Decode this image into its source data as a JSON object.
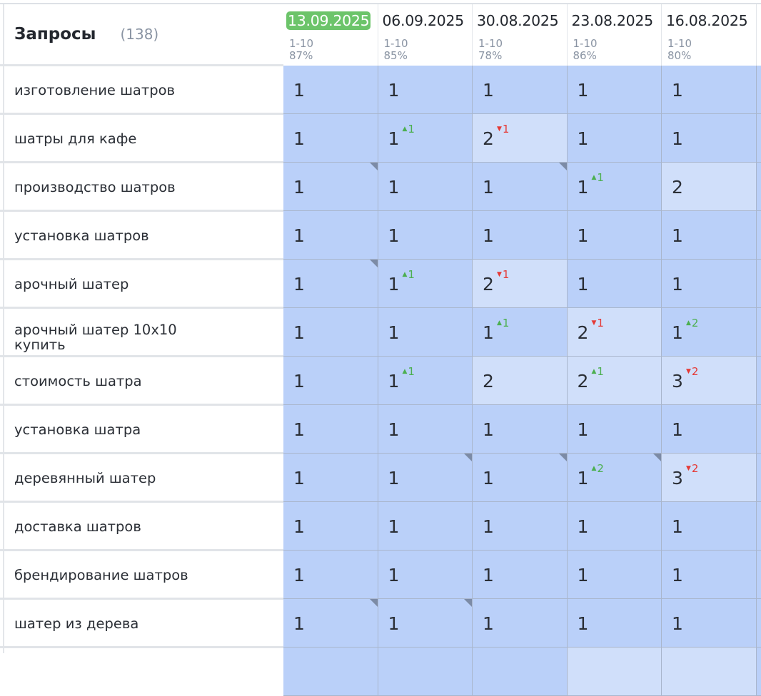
{
  "header": {
    "title": "Запросы",
    "count": "(138)"
  },
  "columns": [
    {
      "date": "13.09.2025",
      "range": "1-10",
      "percent": "87%",
      "current": true
    },
    {
      "date": "06.09.2025",
      "range": "1-10",
      "percent": "85%"
    },
    {
      "date": "30.08.2025",
      "range": "1-10",
      "percent": "78%"
    },
    {
      "date": "23.08.2025",
      "range": "1-10",
      "percent": "86%"
    },
    {
      "date": "16.08.2025",
      "range": "1-10",
      "percent": "80%"
    }
  ],
  "colors": {
    "cell": "#bad0f9",
    "cell_light": "#d0dffa",
    "current_date": "#6cc46a",
    "up": "#4caf50",
    "down": "#e53935"
  },
  "rows": [
    {
      "query": "изготовление шатров",
      "cells": [
        {
          "v": "1"
        },
        {
          "v": "1"
        },
        {
          "v": "1"
        },
        {
          "v": "1"
        },
        {
          "v": "1"
        }
      ]
    },
    {
      "query": "шатры для кафе",
      "cells": [
        {
          "v": "1"
        },
        {
          "v": "1",
          "up": "1"
        },
        {
          "v": "2",
          "down": "1"
        },
        {
          "v": "1"
        },
        {
          "v": "1"
        }
      ]
    },
    {
      "query": "производство шатров",
      "cells": [
        {
          "v": "1",
          "mark": true
        },
        {
          "v": "1"
        },
        {
          "v": "1",
          "mark": true
        },
        {
          "v": "1",
          "up": "1"
        },
        {
          "v": "2"
        }
      ]
    },
    {
      "query": "установка шатров",
      "cells": [
        {
          "v": "1"
        },
        {
          "v": "1"
        },
        {
          "v": "1"
        },
        {
          "v": "1"
        },
        {
          "v": "1"
        }
      ]
    },
    {
      "query": "арочный шатер",
      "cells": [
        {
          "v": "1",
          "mark": true
        },
        {
          "v": "1",
          "up": "1"
        },
        {
          "v": "2",
          "down": "1"
        },
        {
          "v": "1"
        },
        {
          "v": "1"
        }
      ]
    },
    {
      "query": "арочный шатер 10x10 купить",
      "cells": [
        {
          "v": "1"
        },
        {
          "v": "1"
        },
        {
          "v": "1",
          "up": "1"
        },
        {
          "v": "2",
          "down": "1"
        },
        {
          "v": "1",
          "up": "2"
        }
      ]
    },
    {
      "query": "стоимость шатра",
      "cells": [
        {
          "v": "1"
        },
        {
          "v": "1",
          "up": "1"
        },
        {
          "v": "2"
        },
        {
          "v": "2",
          "up": "1"
        },
        {
          "v": "3",
          "down": "2"
        }
      ]
    },
    {
      "query": "установка шатра",
      "cells": [
        {
          "v": "1"
        },
        {
          "v": "1"
        },
        {
          "v": "1"
        },
        {
          "v": "1"
        },
        {
          "v": "1"
        }
      ]
    },
    {
      "query": "деревянный шатер",
      "cells": [
        {
          "v": "1"
        },
        {
          "v": "1",
          "mark": true
        },
        {
          "v": "1",
          "mark": true
        },
        {
          "v": "1",
          "up": "2",
          "mark": true
        },
        {
          "v": "3",
          "down": "2"
        }
      ]
    },
    {
      "query": "доставка шатров",
      "cells": [
        {
          "v": "1"
        },
        {
          "v": "1"
        },
        {
          "v": "1"
        },
        {
          "v": "1"
        },
        {
          "v": "1"
        }
      ]
    },
    {
      "query": "брендирование шатров",
      "cells": [
        {
          "v": "1"
        },
        {
          "v": "1"
        },
        {
          "v": "1"
        },
        {
          "v": "1"
        },
        {
          "v": "1"
        }
      ]
    },
    {
      "query": "шатер из дерева",
      "cells": [
        {
          "v": "1",
          "mark": true
        },
        {
          "v": "1",
          "mark": true
        },
        {
          "v": "1"
        },
        {
          "v": "1"
        },
        {
          "v": "1"
        }
      ]
    }
  ]
}
